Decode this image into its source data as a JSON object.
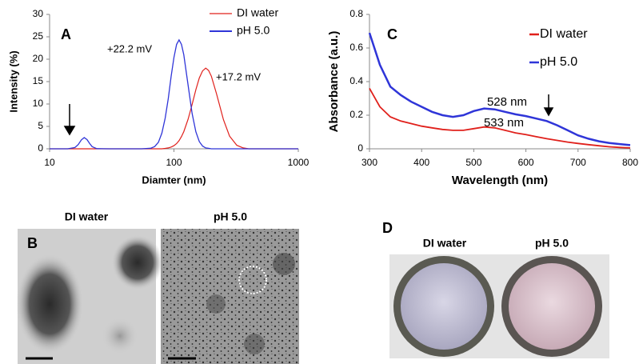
{
  "chart_data": [
    {
      "type": "line",
      "panel": "A",
      "xlabel": "Diamter (nm)",
      "ylabel": "Intensity (%)",
      "xscale": "log",
      "xlim": [
        10,
        1000
      ],
      "xticks": [
        10,
        100,
        1000
      ],
      "ylim": [
        0,
        30
      ],
      "yticks": [
        0,
        5,
        10,
        15,
        20,
        25,
        30
      ],
      "legend": "upper right",
      "x": [
        10,
        14,
        16,
        17,
        18,
        19,
        20,
        21,
        22,
        24,
        30,
        55,
        65,
        70,
        75,
        80,
        85,
        90,
        95,
        100,
        105,
        110,
        115,
        120,
        130,
        140,
        150,
        160,
        170,
        180,
        190,
        200,
        220,
        250,
        280,
        320,
        360,
        400,
        500,
        1000
      ],
      "series": [
        {
          "name": "DI water",
          "color": "#e0201b",
          "values": [
            0,
            0,
            0,
            0,
            0,
            0,
            0,
            0,
            0,
            0,
            0,
            0,
            0,
            0,
            0,
            0,
            0.09,
            0.2,
            0.39,
            0.69,
            1.16,
            1.83,
            2.74,
            3.82,
            6.6,
            9.9,
            13.2,
            15.8,
            17.4,
            18,
            17.5,
            16.2,
            12.3,
            6.5,
            2.84,
            0.79,
            0.2,
            0,
            0,
            0
          ]
        },
        {
          "name": "pH 5.0",
          "color": "#2f35d8",
          "values": [
            0,
            0,
            0.28,
            0.94,
            1.98,
            2.5,
            2.05,
            1.17,
            0.49,
            0.04,
            0,
            0,
            0.12,
            0.5,
            1.47,
            3.5,
            6.8,
            11.2,
            16.2,
            20.4,
            23.3,
            24.3,
            23.3,
            21,
            14.2,
            7.9,
            3.8,
            1.6,
            0.6,
            0.2,
            0.1,
            0,
            0,
            0,
            0,
            0,
            0,
            0,
            0,
            0
          ]
        }
      ],
      "annotations": [
        {
          "text": "+22.2 mV",
          "color": "#2f35d8"
        },
        {
          "text": "+17.2 mV",
          "color": "#e0201b"
        }
      ]
    },
    {
      "type": "line",
      "panel": "C",
      "xlabel": "Wavelength (nm)",
      "ylabel": "Absorbance (a.u.)",
      "xlim": [
        300,
        800
      ],
      "xticks": [
        300,
        400,
        500,
        600,
        700,
        800
      ],
      "ylim": [
        0,
        0.8
      ],
      "yticks": [
        0,
        0.2,
        0.4,
        0.6,
        0.8
      ],
      "legend": "upper right",
      "x": [
        300,
        320,
        340,
        360,
        380,
        400,
        420,
        440,
        460,
        480,
        500,
        520,
        540,
        560,
        580,
        600,
        620,
        640,
        660,
        680,
        700,
        720,
        740,
        760,
        780,
        800
      ],
      "series": [
        {
          "name": "DI water",
          "color": "#e0201b",
          "values": [
            0.36,
            0.25,
            0.19,
            0.165,
            0.15,
            0.135,
            0.125,
            0.115,
            0.11,
            0.11,
            0.12,
            0.13,
            0.125,
            0.11,
            0.095,
            0.085,
            0.072,
            0.06,
            0.05,
            0.04,
            0.032,
            0.025,
            0.018,
            0.012,
            0.008,
            0.005
          ]
        },
        {
          "name": "pH 5.0",
          "color": "#2f35d8",
          "values": [
            0.69,
            0.5,
            0.37,
            0.32,
            0.28,
            0.25,
            0.22,
            0.2,
            0.19,
            0.2,
            0.225,
            0.24,
            0.235,
            0.22,
            0.205,
            0.195,
            0.18,
            0.165,
            0.14,
            0.11,
            0.08,
            0.06,
            0.045,
            0.035,
            0.028,
            0.022
          ]
        }
      ],
      "annotations": [
        {
          "text": "528 nm",
          "color": "#2f35d8"
        },
        {
          "text": "533 nm",
          "color": "#e0201b"
        }
      ]
    }
  ],
  "panels": {
    "B": {
      "label": "B",
      "captions": [
        "DI water",
        "pH 5.0"
      ]
    },
    "D": {
      "label": "D",
      "captions": [
        "DI water",
        "pH 5.0"
      ]
    }
  }
}
